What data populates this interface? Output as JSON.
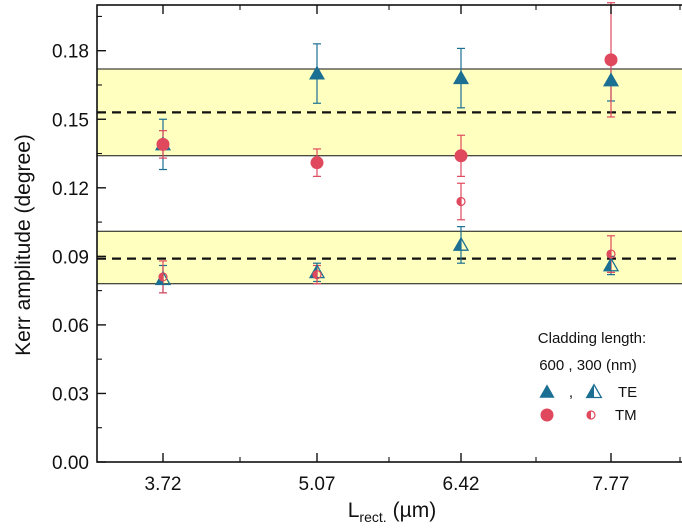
{
  "chart_data": {
    "type": "scatter",
    "xlabel": "L",
    "xlabel_sub": "rect.",
    "xlabel_unit": "(µm)",
    "ylabel": "Kerr amplitude (degree)",
    "categories": [
      "3.72",
      "5.07",
      "6.42",
      "7.77"
    ],
    "yticks": [
      "0.00",
      "0.03",
      "0.06",
      "0.09",
      "0.12",
      "0.15",
      "0.18"
    ],
    "ylim": [
      0,
      0.2
    ],
    "colors": {
      "te": "#1b6f92",
      "tm": "#e0495d",
      "band": "#ffffc0"
    },
    "bands": [
      {
        "mean": 0.153,
        "lower": 0.134,
        "upper": 0.172
      },
      {
        "mean": 0.089,
        "lower": 0.078,
        "upper": 0.101
      }
    ],
    "series": [
      {
        "name": "TE 600",
        "marker": "triangle-filled",
        "color": "#1b6f92",
        "points": [
          {
            "x": "3.72",
            "y": 0.139,
            "err": 0.011
          },
          {
            "x": "5.07",
            "y": 0.17,
            "err": 0.013
          },
          {
            "x": "6.42",
            "y": 0.168,
            "err": 0.013
          },
          {
            "x": "7.77",
            "y": 0.167,
            "err": 0.009
          }
        ]
      },
      {
        "name": "TM 600",
        "marker": "circle-filled",
        "color": "#e0495d",
        "points": [
          {
            "x": "3.72",
            "y": 0.139,
            "err": 0.006
          },
          {
            "x": "5.07",
            "y": 0.131,
            "err": 0.006
          },
          {
            "x": "6.42",
            "y": 0.134,
            "err": 0.009
          },
          {
            "x": "7.77",
            "y": 0.176,
            "err": 0.025
          }
        ]
      },
      {
        "name": "TE 300",
        "marker": "triangle-half",
        "color": "#1b6f92",
        "points": [
          {
            "x": "3.72",
            "y": 0.08,
            "err": 0.006
          },
          {
            "x": "5.07",
            "y": 0.083,
            "err": 0.004
          },
          {
            "x": "6.42",
            "y": 0.095,
            "err": 0.008
          },
          {
            "x": "7.77",
            "y": 0.086,
            "err": 0.004
          }
        ]
      },
      {
        "name": "TM 300",
        "marker": "circle-half",
        "color": "#e0495d",
        "points": [
          {
            "x": "3.72",
            "y": 0.081,
            "err": 0.007
          },
          {
            "x": "5.07",
            "y": 0.082,
            "err": 0.004
          },
          {
            "x": "6.42",
            "y": 0.114,
            "err": 0.008
          },
          {
            "x": "7.77",
            "y": 0.091,
            "err": 0.008
          }
        ]
      }
    ],
    "legend": {
      "title": "Cladding length:",
      "subtitle": "600 , 300 (nm)",
      "sep": ",",
      "te_label": "TE",
      "tm_label": "TM",
      "placement": "bottom-right"
    }
  }
}
